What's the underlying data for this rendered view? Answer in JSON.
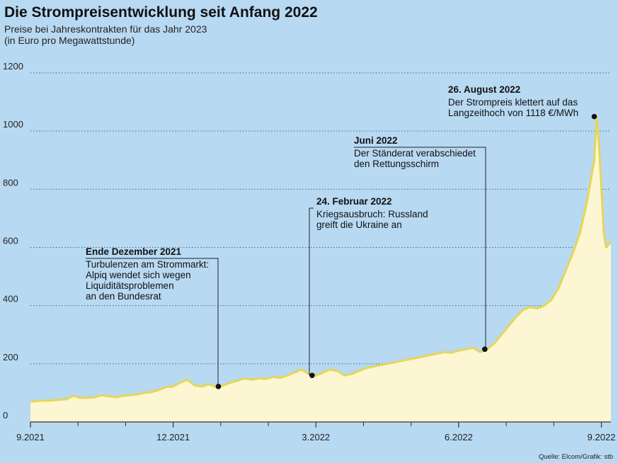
{
  "header": {
    "title": "Die Strompreisentwicklung seit Anfang 2022",
    "subtitle_line1": "Preise bei Jahreskontrakten für das Jahr 2023",
    "subtitle_line2": "(in Euro pro Megawattstunde)"
  },
  "source": "Quelle: Elcom/Grafik: stb",
  "colors": {
    "background": "#b8d9f2",
    "line": "#e5d65a",
    "area": "#fdf6d3",
    "grid": "#4a6a85",
    "axis": "#333333"
  },
  "chart_data": {
    "type": "area",
    "ylim": [
      0,
      1200
    ],
    "yticks": [
      0,
      200,
      400,
      600,
      800,
      1000,
      1200
    ],
    "xlim": [
      0,
      12.2
    ],
    "xticks": [
      {
        "pos": 0,
        "label": "9.2021"
      },
      {
        "pos": 3,
        "label": "12.2021"
      },
      {
        "pos": 6,
        "label": "3.2022"
      },
      {
        "pos": 9,
        "label": "6.2022"
      },
      {
        "pos": 12,
        "label": "9.2022"
      }
    ],
    "minor_xticks": [
      1,
      2,
      4,
      5,
      7,
      8,
      10,
      11
    ],
    "x": [
      0,
      0.15,
      0.3,
      0.45,
      0.6,
      0.75,
      0.9,
      1.05,
      1.2,
      1.35,
      1.5,
      1.65,
      1.8,
      1.95,
      2.1,
      2.25,
      2.4,
      2.55,
      2.7,
      2.85,
      3.0,
      3.15,
      3.3,
      3.45,
      3.6,
      3.75,
      3.9,
      4.05,
      4.2,
      4.35,
      4.5,
      4.65,
      4.8,
      4.95,
      5.1,
      5.25,
      5.4,
      5.55,
      5.7,
      5.85,
      6.0,
      6.15,
      6.3,
      6.45,
      6.6,
      6.75,
      6.9,
      7.05,
      7.2,
      7.35,
      7.5,
      7.65,
      7.8,
      7.95,
      8.1,
      8.25,
      8.4,
      8.55,
      8.7,
      8.85,
      9.0,
      9.15,
      9.3,
      9.45,
      9.6,
      9.75,
      9.9,
      10.05,
      10.2,
      10.35,
      10.5,
      10.65,
      10.8,
      10.95,
      11.1,
      11.25,
      11.4,
      11.55,
      11.7,
      11.85,
      11.9,
      11.95,
      12.0,
      12.05,
      12.1,
      12.2
    ],
    "y": [
      70,
      72,
      73,
      74,
      76,
      78,
      90,
      82,
      83,
      85,
      92,
      88,
      85,
      90,
      92,
      95,
      100,
      103,
      110,
      120,
      122,
      135,
      145,
      125,
      122,
      130,
      120,
      125,
      135,
      142,
      150,
      145,
      150,
      148,
      155,
      152,
      160,
      170,
      180,
      165,
      160,
      170,
      180,
      175,
      160,
      165,
      175,
      185,
      190,
      195,
      200,
      205,
      210,
      215,
      220,
      225,
      230,
      235,
      240,
      238,
      245,
      250,
      255,
      240,
      250,
      270,
      300,
      330,
      360,
      385,
      395,
      390,
      400,
      420,
      460,
      520,
      580,
      650,
      760,
      900,
      1050,
      950,
      800,
      650,
      600,
      620
    ],
    "events": [
      {
        "x": 3.95,
        "y": 122,
        "date": "Ende Dezember 2021",
        "lines": [
          "Turbulenzen am Strommarkt:",
          "Alpiq wendet sich wegen",
          "Liquiditätsproblemen",
          "an den Bundesrat"
        ]
      },
      {
        "x": 5.92,
        "y": 160,
        "date": "24. Februar 2022",
        "lines": [
          "Kriegsausbruch: Russland",
          "greift die Ukraine an"
        ]
      },
      {
        "x": 9.55,
        "y": 250,
        "date": "Juni 2022",
        "lines": [
          "Der Ständerat verabschiedet",
          "den Rettungsschirm"
        ]
      },
      {
        "x": 11.85,
        "y": 1050,
        "date": "26. August 2022",
        "lines": [
          "Der Strompreis klettert auf das",
          "Langzeithoch von 1118 €/MWh"
        ]
      }
    ]
  }
}
